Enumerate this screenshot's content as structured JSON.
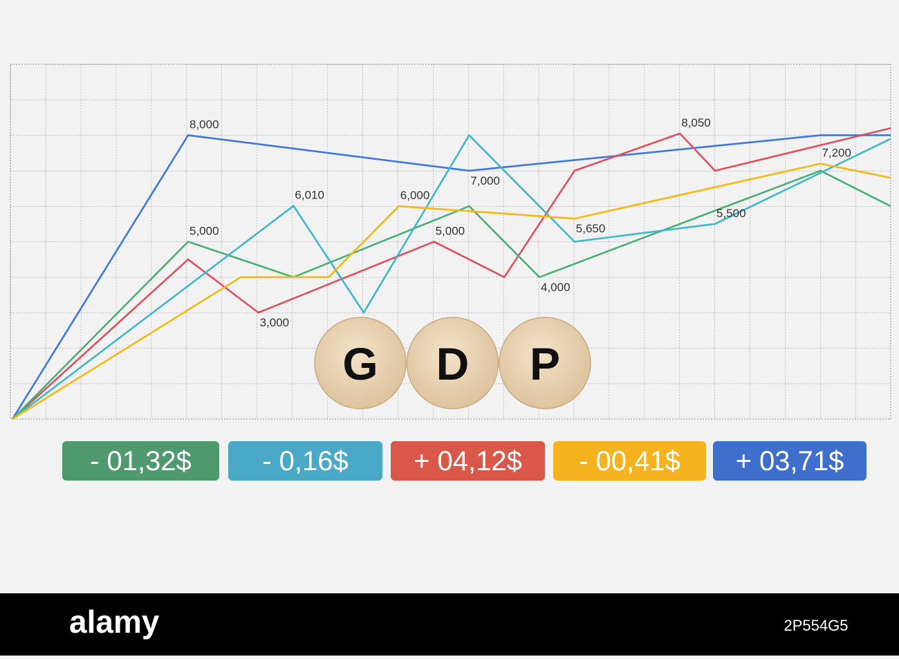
{
  "chart_data": {
    "type": "line",
    "xlim": [
      0,
      25
    ],
    "ylim": [
      0,
      10000
    ],
    "series": [
      {
        "color": "#3f78e0",
        "x": [
          0,
          5,
          13,
          23,
          25
        ],
        "values": [
          0,
          8000,
          7000,
          8000,
          8000
        ],
        "value_labels": [
          null,
          "8,000",
          "7,000",
          null,
          null
        ]
      },
      {
        "color": "#e0505f",
        "x": [
          0,
          5,
          7,
          12,
          14,
          16,
          19,
          20,
          25
        ],
        "values": [
          0,
          4500,
          3000,
          5000,
          4000,
          7000,
          8050,
          7000,
          8200
        ],
        "value_labels": [
          null,
          null,
          "3,000",
          "5,000",
          null,
          null,
          "8,050",
          null,
          null
        ]
      },
      {
        "color": "#4caf78",
        "x": [
          0,
          5,
          8,
          13,
          15,
          23,
          25
        ],
        "values": [
          0,
          5000,
          4000,
          6000,
          4000,
          7000,
          6000
        ],
        "value_labels": [
          null,
          "5,000",
          null,
          null,
          "4,000",
          null,
          null
        ]
      },
      {
        "color": "#3fb8cc",
        "x": [
          0,
          8,
          10,
          13,
          16,
          20,
          25
        ],
        "values": [
          0,
          6010,
          3000,
          8000,
          5000,
          5500,
          7900
        ],
        "value_labels": [
          null,
          "6,010",
          null,
          null,
          null,
          "5,500",
          null
        ]
      },
      {
        "color": "#f5b90f",
        "x": [
          0,
          6.5,
          9,
          11,
          16,
          23,
          25
        ],
        "values": [
          0,
          4000,
          4000,
          6000,
          5650,
          7200,
          6800
        ],
        "value_labels": [
          null,
          null,
          null,
          "6,000",
          "5,650",
          "7,200",
          null
        ]
      }
    ]
  },
  "tiles": [
    "G",
    "D",
    "P"
  ],
  "badges": [
    {
      "text": "- 01,32$",
      "color": "#4e9a6e"
    },
    {
      "text": "- 0,16$",
      "color": "#4aa9c6"
    },
    {
      "text": "+ 04,12$",
      "color": "#d9584a"
    },
    {
      "text": "- 00,41$",
      "color": "#f6b21f"
    },
    {
      "text": "+ 03,71$",
      "color": "#3f6fcc"
    }
  ],
  "footer": {
    "logo": "alamy",
    "id": "2P554G5"
  }
}
